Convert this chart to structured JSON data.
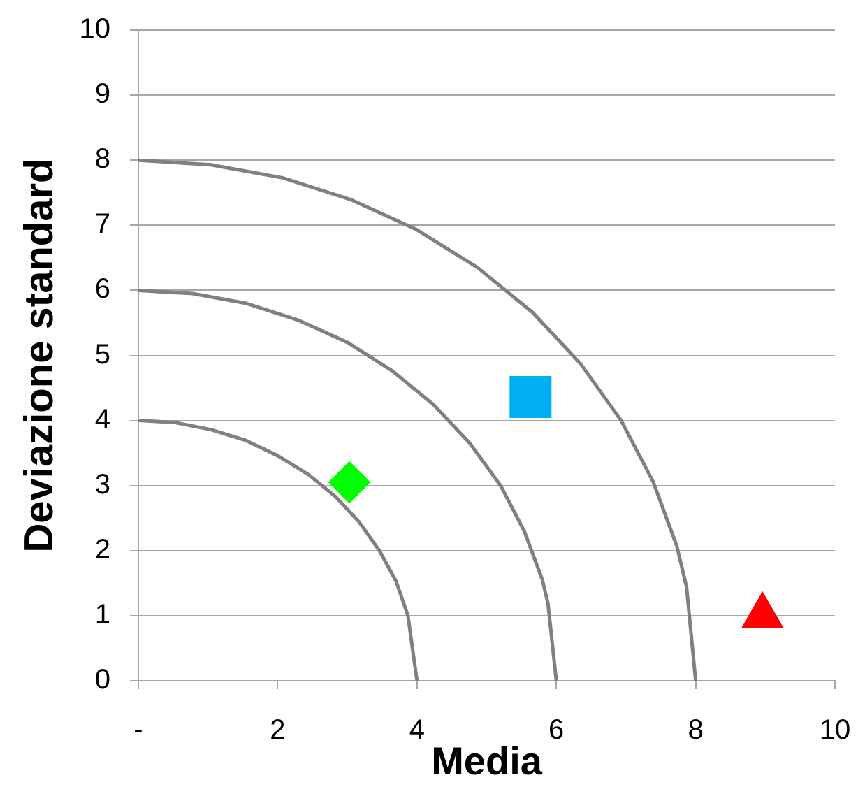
{
  "chart_data": {
    "type": "scatter",
    "xlabel": "Media",
    "ylabel": "Deviazione standard",
    "xlim": [
      0,
      10
    ],
    "ylim": [
      0,
      10
    ],
    "xticks": [
      {
        "value": 0,
        "label": "-"
      },
      2,
      4,
      6,
      8,
      10
    ],
    "yticks": [
      0,
      1,
      2,
      3,
      4,
      5,
      6,
      7,
      8,
      9,
      10
    ],
    "grid": "y",
    "legend": false,
    "series": [
      {
        "type": "line",
        "color": "#808080",
        "marker": "none",
        "line_style": "solid",
        "x": [
          0,
          0.52,
          1.04,
          1.53,
          2.0,
          2.44,
          2.83,
          3.17,
          3.46,
          3.7,
          3.87,
          4
        ],
        "values": [
          4,
          3.97,
          3.86,
          3.7,
          3.46,
          3.17,
          2.83,
          2.44,
          2.0,
          1.53,
          1.0,
          0
        ]
      },
      {
        "type": "line",
        "color": "#808080",
        "marker": "none",
        "line_style": "solid",
        "x": [
          0,
          0.78,
          1.55,
          2.3,
          3.0,
          3.65,
          4.24,
          4.76,
          5.2,
          5.54,
          5.8,
          5.88,
          6
        ],
        "values": [
          6,
          5.95,
          5.8,
          5.54,
          5.2,
          4.76,
          4.24,
          3.65,
          3.0,
          2.3,
          1.55,
          1.19,
          0
        ]
      },
      {
        "type": "line",
        "color": "#808080",
        "marker": "none",
        "line_style": "solid",
        "x": [
          0,
          1.04,
          2.07,
          3.06,
          4.0,
          4.87,
          5.66,
          6.35,
          6.93,
          7.39,
          7.73,
          7.87,
          8
        ],
        "values": [
          8,
          7.93,
          7.73,
          7.39,
          6.93,
          6.35,
          5.66,
          4.87,
          4.0,
          3.06,
          2.07,
          1.44,
          0
        ]
      },
      {
        "color": "#00ff00",
        "marker": "diamond",
        "x": [
          3.03
        ],
        "values": [
          3.05
        ]
      },
      {
        "color": "#00b0f0",
        "marker": "square",
        "x": [
          5.63
        ],
        "values": [
          4.36
        ]
      },
      {
        "color": "#ff0000",
        "marker": "triangle",
        "x": [
          8.96
        ],
        "values": [
          1.0
        ]
      }
    ]
  }
}
